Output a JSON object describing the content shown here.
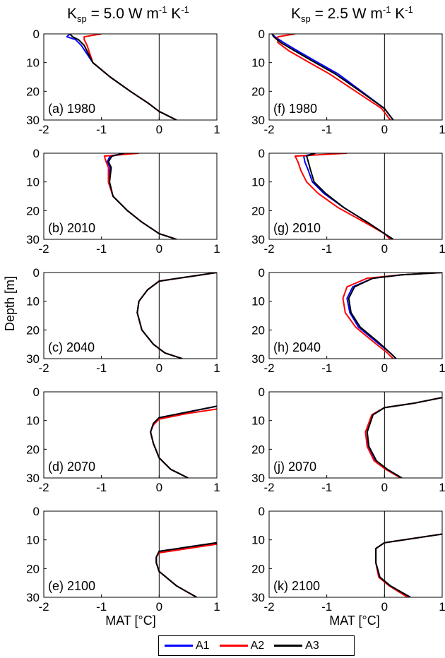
{
  "figure": {
    "col_titles": [
      {
        "prefix": "K",
        "sub": "sp",
        "value": " = 5.0 W m",
        "sup1": "-1",
        "mid": " K",
        "sup2": "-1"
      },
      {
        "prefix": "K",
        "sub": "sp",
        "value": " = 2.5 W m",
        "sup1": "-1",
        "mid": " K",
        "sup2": "-1"
      }
    ],
    "ylabel": "Depth [m]",
    "xlabel": "MAT [°C]",
    "legend": [
      {
        "name": "A1",
        "color": "#0000ff"
      },
      {
        "name": "A2",
        "color": "#ff0000"
      },
      {
        "name": "A3",
        "color": "#000000"
      }
    ]
  },
  "chart_data": [
    {
      "type": "line",
      "panel": "(a) 1980",
      "xlim": [
        -2,
        1
      ],
      "ylim": [
        0,
        30
      ],
      "y_reversed": true,
      "xticks": [
        -2,
        -1,
        0,
        1
      ],
      "yticks": [
        0,
        10,
        20,
        30
      ],
      "series": [
        {
          "name": "A1",
          "x": [
            -1.55,
            -1.6,
            -1.45,
            -1.35,
            -1.15,
            -0.85,
            -0.5,
            -0.2,
            0.0,
            0.3
          ],
          "y": [
            0,
            1,
            2,
            4,
            10,
            15,
            20,
            24,
            27,
            30
          ]
        },
        {
          "name": "A2",
          "x": [
            -1.0,
            -1.3,
            -1.3,
            -1.25,
            -1.15,
            -0.85,
            -0.5,
            -0.2,
            0.0,
            0.3
          ],
          "y": [
            0,
            1,
            2,
            4,
            10,
            15,
            20,
            24,
            27,
            30
          ]
        },
        {
          "name": "A3",
          "x": [
            -1.55,
            -1.5,
            -1.4,
            -1.3,
            -1.15,
            -0.85,
            -0.5,
            -0.2,
            0.0,
            0.3
          ],
          "y": [
            0,
            1,
            2,
            4,
            10,
            15,
            20,
            24,
            27,
            30
          ]
        }
      ]
    },
    {
      "type": "line",
      "panel": "(b) 2010",
      "xlim": [
        -2,
        1
      ],
      "ylim": [
        0,
        30
      ],
      "y_reversed": true,
      "xticks": [
        -2,
        -1,
        0,
        1
      ],
      "yticks": [
        0,
        10,
        20,
        30
      ],
      "series": [
        {
          "name": "A1",
          "x": [
            -0.6,
            -0.85,
            -0.9,
            -0.85,
            -0.88,
            -0.8,
            -0.55,
            -0.3,
            0.0,
            0.3
          ],
          "y": [
            0,
            1,
            3,
            5,
            10,
            15,
            20,
            24,
            28,
            30
          ]
        },
        {
          "name": "A2",
          "x": [
            -0.35,
            -0.95,
            -0.92,
            -0.88,
            -0.88,
            -0.8,
            -0.55,
            -0.3,
            0.0,
            0.3
          ],
          "y": [
            0,
            1,
            3,
            5,
            10,
            15,
            20,
            24,
            28,
            30
          ]
        },
        {
          "name": "A3",
          "x": [
            -0.6,
            -0.82,
            -0.88,
            -0.83,
            -0.86,
            -0.8,
            -0.55,
            -0.3,
            0.0,
            0.3
          ],
          "y": [
            0,
            1,
            3,
            5,
            10,
            15,
            20,
            24,
            28,
            30
          ]
        }
      ]
    },
    {
      "type": "line",
      "panel": "(c) 2040",
      "xlim": [
        -2,
        1
      ],
      "ylim": [
        0,
        30
      ],
      "y_reversed": true,
      "xticks": [
        -2,
        -1,
        0,
        1
      ],
      "yticks": [
        0,
        10,
        20,
        30
      ],
      "series": [
        {
          "name": "A1",
          "x": [
            1.0,
            0.5,
            0.0,
            -0.2,
            -0.35,
            -0.38,
            -0.3,
            -0.1,
            0.1,
            0.4
          ],
          "y": [
            0,
            1.5,
            3,
            6,
            10,
            14,
            20,
            25,
            28,
            30
          ]
        },
        {
          "name": "A2",
          "x": [
            1.0,
            0.5,
            0.0,
            -0.2,
            -0.35,
            -0.38,
            -0.3,
            -0.1,
            0.1,
            0.4
          ],
          "y": [
            0,
            1.5,
            3,
            6,
            10,
            14,
            20,
            25,
            28,
            30
          ]
        },
        {
          "name": "A3",
          "x": [
            1.0,
            0.5,
            0.0,
            -0.2,
            -0.35,
            -0.38,
            -0.3,
            -0.1,
            0.1,
            0.4
          ],
          "y": [
            0,
            1.5,
            3,
            6,
            10,
            14,
            20,
            25,
            28,
            30
          ]
        }
      ]
    },
    {
      "type": "line",
      "panel": "(d) 2070",
      "xlim": [
        -2,
        1
      ],
      "ylim": [
        0,
        30
      ],
      "y_reversed": true,
      "xticks": [
        -2,
        -1,
        0,
        1
      ],
      "yticks": [
        0,
        10,
        20,
        30
      ],
      "series": [
        {
          "name": "A1",
          "x": [
            1.0,
            0.5,
            0.0,
            -0.1,
            -0.15,
            -0.1,
            0.0,
            0.2,
            0.5
          ],
          "y": [
            5,
            7,
            9,
            11,
            14,
            18,
            23,
            27,
            30
          ]
        },
        {
          "name": "A2",
          "x": [
            1.0,
            0.5,
            0.0,
            -0.1,
            -0.15,
            -0.1,
            0.0,
            0.2,
            0.5
          ],
          "y": [
            6,
            7.5,
            9.5,
            11.5,
            14,
            18,
            23,
            27,
            30
          ]
        },
        {
          "name": "A3",
          "x": [
            1.0,
            0.5,
            0.0,
            -0.1,
            -0.15,
            -0.1,
            0.0,
            0.2,
            0.5
          ],
          "y": [
            5,
            7,
            9,
            11,
            14,
            18,
            23,
            27,
            30
          ]
        }
      ]
    },
    {
      "type": "line",
      "panel": "(e) 2100",
      "xlim": [
        -2,
        1
      ],
      "ylim": [
        0,
        30
      ],
      "y_reversed": true,
      "xticks": [
        -2,
        -1,
        0,
        1
      ],
      "yticks": [
        0,
        10,
        20,
        30
      ],
      "series": [
        {
          "name": "A1",
          "x": [
            1.0,
            0.5,
            0.0,
            -0.05,
            -0.05,
            0.0,
            0.3,
            0.65
          ],
          "y": [
            11,
            12.5,
            14,
            16,
            18,
            21,
            26,
            30
          ]
        },
        {
          "name": "A2",
          "x": [
            1.0,
            0.5,
            0.0,
            -0.05,
            -0.05,
            0.0,
            0.3,
            0.65
          ],
          "y": [
            11.5,
            13,
            14.5,
            16,
            18,
            21,
            26,
            30
          ]
        },
        {
          "name": "A3",
          "x": [
            1.0,
            0.5,
            0.0,
            -0.05,
            -0.05,
            0.0,
            0.3,
            0.65
          ],
          "y": [
            11,
            12.5,
            14,
            16,
            18,
            21,
            26,
            30
          ]
        }
      ]
    },
    {
      "type": "line",
      "panel": "(f) 1980",
      "xlim": [
        -2,
        1
      ],
      "ylim": [
        0,
        30
      ],
      "y_reversed": true,
      "xticks": [
        -2,
        -1,
        0,
        1
      ],
      "yticks": [
        0,
        10,
        20,
        30
      ],
      "series": [
        {
          "name": "A1",
          "x": [
            -1.95,
            -1.9,
            -1.75,
            -1.5,
            -1.15,
            -0.8,
            -0.4,
            0.0,
            0.15
          ],
          "y": [
            0,
            1,
            3,
            6,
            10,
            14,
            20,
            26,
            30
          ]
        },
        {
          "name": "A2",
          "x": [
            -1.55,
            -1.85,
            -1.85,
            -1.65,
            -1.3,
            -0.95,
            -0.5,
            -0.05,
            0.1
          ],
          "y": [
            0,
            1,
            3,
            6,
            10,
            14,
            20,
            26,
            30
          ]
        },
        {
          "name": "A3",
          "x": [
            -1.95,
            -1.92,
            -1.8,
            -1.55,
            -1.2,
            -0.85,
            -0.42,
            0.0,
            0.15
          ],
          "y": [
            0,
            1,
            3,
            6,
            10,
            14,
            20,
            26,
            30
          ]
        }
      ]
    },
    {
      "type": "line",
      "panel": "(g) 2010",
      "xlim": [
        -2,
        1
      ],
      "ylim": [
        0,
        30
      ],
      "y_reversed": true,
      "xticks": [
        -2,
        -1,
        0,
        1
      ],
      "yticks": [
        0,
        10,
        20,
        30
      ],
      "series": [
        {
          "name": "A1",
          "x": [
            -1.2,
            -1.4,
            -1.38,
            -1.32,
            -1.25,
            -1.05,
            -0.7,
            -0.3,
            0.0,
            0.15
          ],
          "y": [
            0,
            1,
            3,
            6,
            10,
            14,
            19,
            24,
            28,
            30
          ]
        },
        {
          "name": "A2",
          "x": [
            -0.65,
            -1.55,
            -1.5,
            -1.45,
            -1.35,
            -1.15,
            -0.8,
            -0.35,
            0.0,
            0.1
          ],
          "y": [
            0,
            1,
            3,
            6,
            10,
            14,
            19,
            24,
            28,
            30
          ]
        },
        {
          "name": "A3",
          "x": [
            -1.2,
            -1.35,
            -1.32,
            -1.28,
            -1.22,
            -1.02,
            -0.7,
            -0.3,
            0.0,
            0.15
          ],
          "y": [
            0,
            1,
            3,
            6,
            10,
            14,
            19,
            24,
            28,
            30
          ]
        }
      ]
    },
    {
      "type": "line",
      "panel": "(h) 2040",
      "xlim": [
        -2,
        1
      ],
      "ylim": [
        0,
        30
      ],
      "y_reversed": true,
      "xticks": [
        -2,
        -1,
        0,
        1
      ],
      "yticks": [
        0,
        10,
        20,
        30
      ],
      "series": [
        {
          "name": "A1",
          "x": [
            1.0,
            0.3,
            -0.2,
            -0.55,
            -0.65,
            -0.6,
            -0.45,
            -0.15,
            0.1,
            0.2
          ],
          "y": [
            0,
            0.8,
            2,
            5,
            9,
            14,
            19,
            24,
            28,
            30
          ]
        },
        {
          "name": "A2",
          "x": [
            1.0,
            0.3,
            -0.3,
            -0.65,
            -0.72,
            -0.68,
            -0.5,
            -0.2,
            0.05,
            0.15
          ],
          "y": [
            0,
            0.8,
            2,
            5,
            9,
            14,
            19,
            24,
            28,
            30
          ]
        },
        {
          "name": "A3",
          "x": [
            1.0,
            0.3,
            -0.2,
            -0.52,
            -0.62,
            -0.58,
            -0.42,
            -0.12,
            0.1,
            0.2
          ],
          "y": [
            0,
            0.8,
            2,
            5,
            9,
            14,
            19,
            24,
            28,
            30
          ]
        }
      ]
    },
    {
      "type": "line",
      "panel": "(j) 2070",
      "xlim": [
        -2,
        1
      ],
      "ylim": [
        0,
        30
      ],
      "y_reversed": true,
      "xticks": [
        -2,
        -1,
        0,
        1
      ],
      "yticks": [
        0,
        10,
        20,
        30
      ],
      "series": [
        {
          "name": "A1",
          "x": [
            1.0,
            0.5,
            0.0,
            -0.2,
            -0.3,
            -0.28,
            -0.15,
            0.05,
            0.3
          ],
          "y": [
            2,
            4,
            5.5,
            8,
            14,
            19,
            24,
            27,
            30
          ]
        },
        {
          "name": "A2",
          "x": [
            1.0,
            0.5,
            0.0,
            -0.22,
            -0.33,
            -0.3,
            -0.18,
            0.02,
            0.28
          ],
          "y": [
            2,
            4,
            5.5,
            8,
            14,
            19,
            24,
            27,
            30
          ]
        },
        {
          "name": "A3",
          "x": [
            1.0,
            0.5,
            0.0,
            -0.2,
            -0.3,
            -0.27,
            -0.14,
            0.05,
            0.3
          ],
          "y": [
            2,
            4,
            5.5,
            8,
            14,
            19,
            24,
            27,
            30
          ]
        }
      ]
    },
    {
      "type": "line",
      "panel": "(k) 2100",
      "xlim": [
        -2,
        1
      ],
      "ylim": [
        0,
        30
      ],
      "y_reversed": true,
      "xticks": [
        -2,
        -1,
        0,
        1
      ],
      "yticks": [
        0,
        10,
        20,
        30
      ],
      "series": [
        {
          "name": "A1",
          "x": [
            1.0,
            0.5,
            0.0,
            -0.15,
            -0.15,
            -0.08,
            0.1,
            0.45
          ],
          "y": [
            8,
            9.5,
            11,
            13,
            18,
            23,
            26,
            30
          ]
        },
        {
          "name": "A2",
          "x": [
            1.0,
            0.5,
            0.0,
            -0.15,
            -0.15,
            -0.1,
            0.08,
            0.4
          ],
          "y": [
            8,
            9.5,
            11,
            13,
            18,
            23,
            26,
            30
          ]
        },
        {
          "name": "A3",
          "x": [
            1.0,
            0.5,
            0.0,
            -0.15,
            -0.15,
            -0.08,
            0.1,
            0.45
          ],
          "y": [
            8,
            9.5,
            11,
            13,
            18,
            23,
            26,
            30
          ]
        }
      ]
    }
  ]
}
